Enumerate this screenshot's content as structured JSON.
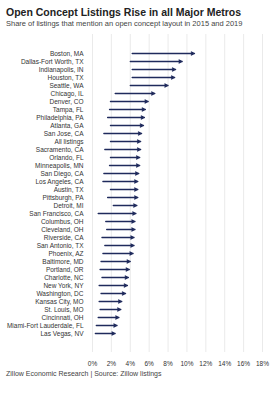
{
  "chart_data": {
    "type": "arrow",
    "title": "Open Concept Listings Rise in all Major Metros",
    "subtitle": "Share of listings that mention an open concept layout in 2015 and 2019",
    "caption": "Zillow Economic Research | Source: Zillow listings",
    "orientation": "horizontal",
    "grid": true,
    "color": "#1f2a5c",
    "categories": [
      "Boston, MA",
      "Dallas-Fort Worth, TX",
      "Indianapolis, IN",
      "Houston, TX",
      "Seattle, WA",
      "Chicago, IL",
      "Denver, CO",
      "Tampa, FL",
      "Philadelphia, PA",
      "Atlanta, GA",
      "San Jose, CA",
      "All listings",
      "Sacramento, CA",
      "Orlando, FL",
      "Minneapolis, MN",
      "San Diego, CA",
      "Los Angeles, CA",
      "Austin, TX",
      "Pittsburgh, PA",
      "Detroit, MI",
      "San Francisco, CA",
      "Columbus, OH",
      "Cleveland, OH",
      "Riverside, CA",
      "San Antonio, TX",
      "Phoenix, AZ",
      "Baltimore, MD",
      "Portland, OR",
      "Charlotte, NC",
      "New York, NY",
      "Washington, DC",
      "Kansas City, MO",
      "St. Louis, MO",
      "Cincinnati, OH",
      "Miami-Fort Lauderdale, FL",
      "Las Vegas, NV"
    ],
    "series": [
      {
        "name": "2015",
        "values": [
          4.2,
          4.0,
          4.2,
          4.2,
          4.0,
          2.4,
          1.9,
          1.8,
          1.6,
          1.9,
          1.2,
          1.9,
          1.3,
          1.9,
          1.8,
          1.2,
          1.1,
          1.9,
          1.6,
          2.2,
          0.6,
          1.4,
          1.5,
          1.0,
          1.3,
          1.1,
          0.9,
          0.8,
          1.0,
          0.7,
          0.9,
          0.7,
          0.8,
          0.6,
          0.4,
          0.3
        ]
      },
      {
        "name": "2019",
        "values": [
          10.8,
          9.5,
          8.8,
          8.7,
          8.0,
          6.6,
          5.9,
          5.6,
          5.5,
          5.4,
          5.2,
          5.1,
          5.1,
          5.0,
          5.0,
          4.9,
          4.8,
          4.8,
          4.8,
          4.7,
          4.6,
          4.5,
          4.5,
          4.4,
          4.4,
          4.3,
          4.0,
          3.9,
          3.8,
          3.7,
          3.5,
          3.1,
          3.0,
          2.8,
          2.6,
          2.4
        ]
      }
    ],
    "xlim": [
      0,
      18
    ],
    "xticks": [
      {
        "value": 0,
        "label": "0%"
      },
      {
        "value": 2,
        "label": "2%"
      },
      {
        "value": 4,
        "label": "4%"
      },
      {
        "value": 6,
        "label": "6%"
      },
      {
        "value": 8,
        "label": "8%"
      },
      {
        "value": 10,
        "label": "10%"
      },
      {
        "value": 12,
        "label": "12%"
      },
      {
        "value": 14,
        "label": "14%"
      },
      {
        "value": 16,
        "label": "16%"
      },
      {
        "value": 18,
        "label": "18%"
      }
    ]
  }
}
